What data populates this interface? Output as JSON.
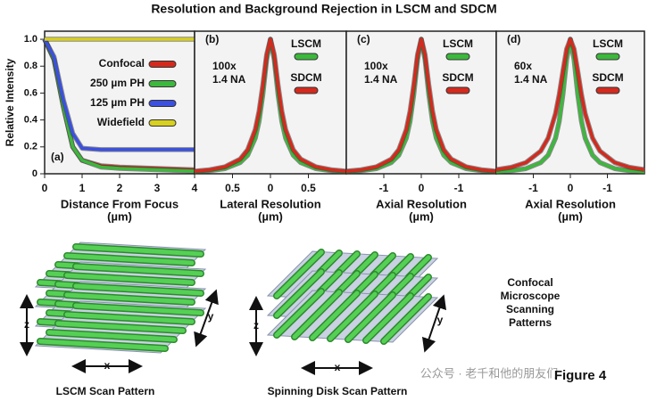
{
  "title": "Resolution and Background Rejection in LSCM and SDCM",
  "chart_data": [
    {
      "type": "line",
      "panel_label": "(a)",
      "ylabel": "Relative Intensity",
      "xlabel": [
        "Distance From Focus",
        "(µm)"
      ],
      "xlim": [
        0,
        4
      ],
      "xticks": [
        0,
        1,
        2,
        3,
        4
      ],
      "ylim": [
        0,
        1.06
      ],
      "yticks": [
        0,
        0.2,
        0.4,
        0.6,
        0.8,
        {
          "value": 1,
          "label": "1.0"
        }
      ],
      "legend": "upper right",
      "x": [
        0,
        0.25,
        0.5,
        0.75,
        1,
        1.5,
        2,
        3,
        4
      ],
      "series": [
        {
          "name": "Confocal",
          "color": "#d42a1e",
          "values": [
            1,
            0.85,
            0.5,
            0.2,
            0.1,
            0.06,
            0.05,
            0.04,
            0.03
          ]
        },
        {
          "name": "250 µm PH",
          "color": "#3cb83c",
          "values": [
            1,
            0.85,
            0.5,
            0.2,
            0.1,
            0.05,
            0.04,
            0.03,
            0.02
          ]
        },
        {
          "name": "125 µm PH",
          "color": "#3b4fe0",
          "values": [
            1,
            0.87,
            0.55,
            0.3,
            0.19,
            0.18,
            0.18,
            0.18,
            0.18
          ]
        },
        {
          "name": "Widefield",
          "color": "#d8d020",
          "values": [
            1,
            1,
            1,
            1,
            1,
            1,
            1,
            1,
            1
          ]
        }
      ]
    },
    {
      "type": "line",
      "panel_label": "(b)",
      "annotation": [
        "100x",
        "1.4 NA"
      ],
      "xlabel": [
        "Lateral Resolution",
        "(µm)"
      ],
      "xlim": [
        -1,
        1
      ],
      "xticks": [
        {
          "value": -0.5,
          "label": "0.5"
        },
        0,
        0.5
      ],
      "ylim": [
        0,
        1.06
      ],
      "legend": "upper right",
      "x": [
        -1,
        -0.8,
        -0.6,
        -0.4,
        -0.3,
        -0.2,
        -0.15,
        -0.1,
        -0.05,
        0,
        0.05,
        0.1,
        0.15,
        0.2,
        0.3,
        0.4,
        0.6,
        0.8,
        1
      ],
      "series": [
        {
          "name": "LSCM",
          "color": "#3cb83c",
          "values": [
            0.014,
            0.022,
            0.038,
            0.083,
            0.138,
            0.265,
            0.39,
            0.59,
            0.85,
            1,
            0.85,
            0.59,
            0.39,
            0.265,
            0.138,
            0.083,
            0.038,
            0.022,
            0.014
          ]
        },
        {
          "name": "SDCM",
          "color": "#d42a1e",
          "values": [
            0.019,
            0.03,
            0.052,
            0.109,
            0.179,
            0.329,
            0.466,
            0.662,
            0.887,
            1,
            0.887,
            0.662,
            0.466,
            0.329,
            0.179,
            0.109,
            0.052,
            0.03,
            0.019
          ]
        }
      ]
    },
    {
      "type": "line",
      "panel_label": "(c)",
      "annotation": [
        "100x",
        "1.4 NA"
      ],
      "xlabel": [
        "Axial Resolution",
        "(µm)"
      ],
      "xlim": [
        -2,
        2
      ],
      "xticks": [
        -1,
        0,
        {
          "value": 1,
          "label": "-1"
        }
      ],
      "ylim": [
        0,
        1.06
      ],
      "legend": "upper right",
      "x": [
        -2,
        -1.6,
        -1.2,
        -0.8,
        -0.6,
        -0.4,
        -0.3,
        -0.2,
        -0.1,
        0,
        0.1,
        0.2,
        0.3,
        0.4,
        0.6,
        0.8,
        1.2,
        1.6,
        2
      ],
      "series": [
        {
          "name": "LSCM",
          "color": "#3cb83c",
          "values": [
            0.014,
            0.022,
            0.038,
            0.083,
            0.138,
            0.265,
            0.39,
            0.59,
            0.85,
            1,
            0.85,
            0.59,
            0.39,
            0.265,
            0.138,
            0.083,
            0.038,
            0.022,
            0.014
          ]
        },
        {
          "name": "SDCM",
          "color": "#d42a1e",
          "values": [
            0.019,
            0.03,
            0.052,
            0.109,
            0.179,
            0.329,
            0.466,
            0.662,
            0.887,
            1,
            0.887,
            0.662,
            0.466,
            0.329,
            0.179,
            0.109,
            0.052,
            0.03,
            0.019
          ]
        }
      ]
    },
    {
      "type": "line",
      "panel_label": "(d)",
      "annotation": [
        "60x",
        "1.4 NA"
      ],
      "xlabel": [
        "Axial Resolution",
        "(µm)"
      ],
      "xlim": [
        -2,
        2
      ],
      "xticks": [
        -1,
        0,
        {
          "value": 1,
          "label": "-1"
        }
      ],
      "ylim": [
        0,
        1.06
      ],
      "legend": "upper right",
      "x": [
        -2,
        -1.6,
        -1.2,
        -0.8,
        -0.6,
        -0.4,
        -0.3,
        -0.2,
        -0.1,
        0,
        0.1,
        0.2,
        0.3,
        0.4,
        0.6,
        0.8,
        1.2,
        1.6,
        2
      ],
      "series": [
        {
          "name": "LSCM",
          "color": "#3cb83c",
          "values": [
            0.014,
            0.022,
            0.038,
            0.083,
            0.138,
            0.265,
            0.39,
            0.59,
            0.85,
            1,
            0.85,
            0.59,
            0.39,
            0.265,
            0.138,
            0.083,
            0.038,
            0.022,
            0.014
          ]
        },
        {
          "name": "SDCM",
          "color": "#d42a1e",
          "values": [
            0.031,
            0.048,
            0.083,
            0.169,
            0.265,
            0.448,
            0.59,
            0.764,
            0.928,
            1,
            0.928,
            0.764,
            0.59,
            0.448,
            0.265,
            0.169,
            0.083,
            0.048,
            0.031
          ]
        }
      ]
    }
  ],
  "illustrations": {
    "left_caption": "LSCM Scan Pattern",
    "right_caption": "Spinning Disk Scan Pattern",
    "side_text": [
      "Confocal",
      "Microscope",
      "Scanning",
      "Patterns"
    ],
    "figure_label": "Figure 4",
    "axis_labels": [
      "x",
      "y",
      "z"
    ],
    "watermark": "公众号 · 老千和他的朋友们"
  }
}
